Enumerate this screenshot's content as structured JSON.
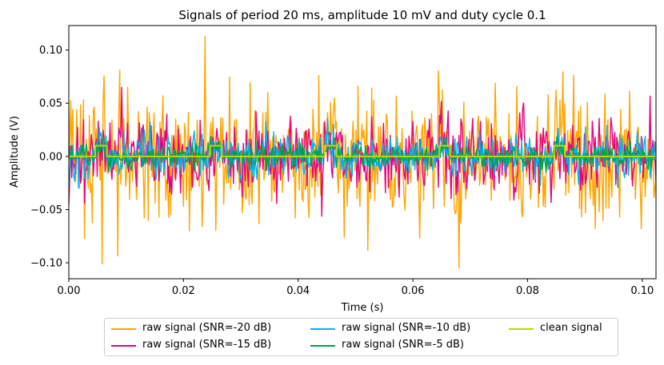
{
  "chart_data": {
    "type": "line",
    "title": "Signals of period 20 ms, amplitude 10 mV and duty cycle 0.1",
    "xlabel": "Time (s)",
    "ylabel": "Amplitude (V)",
    "xlim": [
      0.0,
      0.1024
    ],
    "ylim": [
      -0.115,
      0.123
    ],
    "xticks": [
      0.0,
      0.02,
      0.04,
      0.06,
      0.08,
      0.1
    ],
    "xtick_labels": [
      "0.00",
      "0.02",
      "0.04",
      "0.06",
      "0.08",
      "0.10"
    ],
    "yticks": [
      -0.1,
      -0.05,
      0.0,
      0.05,
      0.1
    ],
    "ytick_labels": [
      "−0.10",
      "−0.05",
      "0.00",
      "0.05",
      "0.10"
    ],
    "legend_position": "below-center",
    "signal": {
      "period_s": 0.02,
      "amplitude_V": 0.01,
      "duty_cycle": 0.1,
      "pulse_starts_s": [
        0.0045,
        0.0245,
        0.0445,
        0.0645,
        0.0845
      ],
      "pulse_width_s": 0.002,
      "n_samples": 600
    },
    "series": [
      {
        "name": "raw signal (SNR=-20 dB)",
        "color": "#ffa500",
        "noise_std_V": 0.0316,
        "seed": 11,
        "peaks": [
          [
            0.0058,
            -0.101
          ],
          [
            0.0237,
            0.113
          ],
          [
            0.068,
            -0.105
          ]
        ]
      },
      {
        "name": "raw signal (SNR=-15 dB)",
        "color": "#e6007e",
        "noise_std_V": 0.0178,
        "seed": 23,
        "peaks": []
      },
      {
        "name": "raw signal (SNR=-10 dB)",
        "color": "#00b4e6",
        "noise_std_V": 0.01,
        "seed": 37,
        "peaks": []
      },
      {
        "name": "raw signal (SNR=-5 dB)",
        "color": "#00a050",
        "noise_std_V": 0.0056,
        "seed": 53,
        "peaks": []
      },
      {
        "name": "clean signal",
        "color": "#bada00",
        "noise_std_V": 0,
        "seed": 0,
        "peaks": []
      }
    ]
  }
}
